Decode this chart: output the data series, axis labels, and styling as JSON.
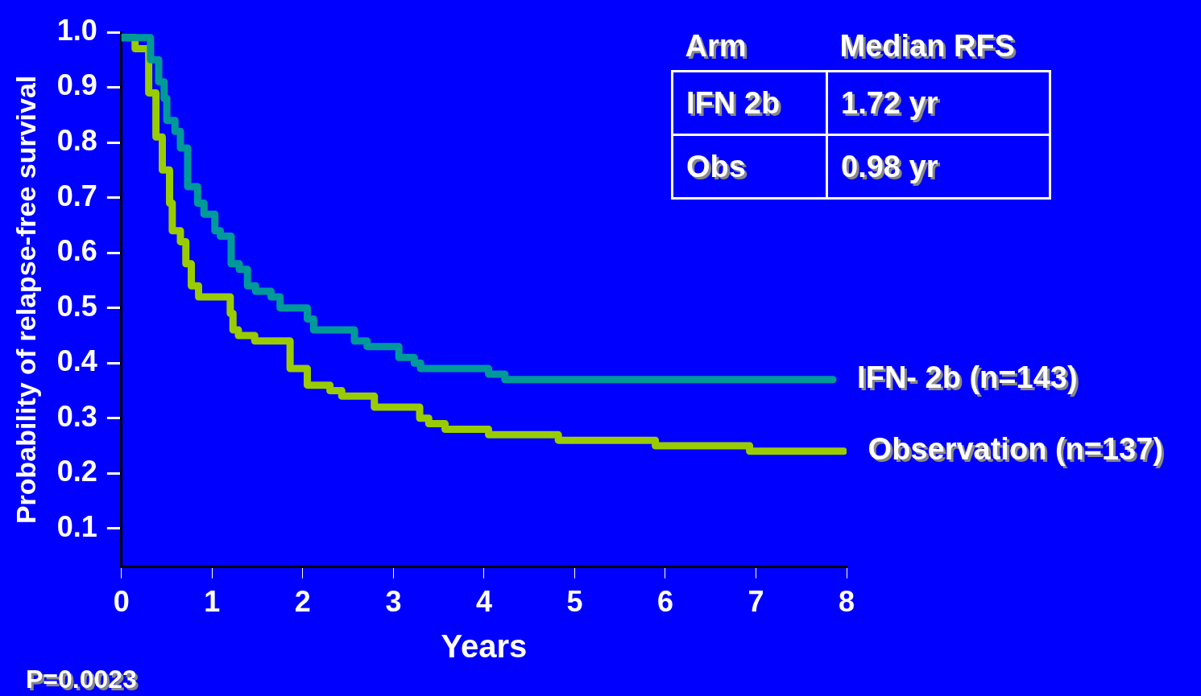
{
  "chart_data": {
    "type": "step",
    "xlabel": "Years",
    "ylabel": "Probability of relapse-free survival",
    "xlim": [
      0,
      8
    ],
    "xticks": [
      0,
      1,
      2,
      3,
      4,
      5,
      6,
      7,
      8
    ],
    "ylim": [
      0.03,
      1.0
    ],
    "yticks": [
      0.1,
      0.2,
      0.3,
      0.4,
      0.5,
      0.6,
      0.7,
      0.8,
      0.9,
      {
        "value": 1,
        "label": "1.0"
      }
    ],
    "grid": false,
    "legend": false,
    "series": [
      {
        "name": "IFN- 2b (n=143)",
        "color": "#009999",
        "x": [
          0,
          0.32,
          0.41,
          0.47,
          0.5,
          0.59,
          0.65,
          0.73,
          0.84,
          0.91,
          1.03,
          1.09,
          1.21,
          1.3,
          1.39,
          1.48,
          1.65,
          1.75,
          1.91,
          2.05,
          2.12,
          2.57,
          2.71,
          3.06,
          3.23,
          3.3,
          4.05,
          4.23,
          5.02,
          7.85
        ],
        "values": [
          0.99,
          0.95,
          0.91,
          0.88,
          0.84,
          0.82,
          0.79,
          0.72,
          0.69,
          0.67,
          0.64,
          0.63,
          0.58,
          0.57,
          0.54,
          0.53,
          0.52,
          0.5,
          0.5,
          0.48,
          0.46,
          0.44,
          0.43,
          0.41,
          0.4,
          0.39,
          0.38,
          0.37,
          0.37,
          0.37
        ]
      },
      {
        "name": "Observation (n=137)",
        "color": "#99cc00",
        "x": [
          0,
          0.15,
          0.3,
          0.38,
          0.45,
          0.53,
          0.56,
          0.65,
          0.71,
          0.77,
          0.85,
          1.2,
          1.23,
          1.29,
          1.47,
          1.86,
          2.05,
          2.3,
          2.43,
          2.79,
          3.29,
          3.39,
          3.57,
          4.05,
          4.82,
          5.89,
          6.93,
          7.97
        ],
        "values": [
          0.99,
          0.97,
          0.89,
          0.81,
          0.75,
          0.69,
          0.64,
          0.62,
          0.58,
          0.54,
          0.52,
          0.49,
          0.46,
          0.45,
          0.44,
          0.39,
          0.36,
          0.35,
          0.34,
          0.32,
          0.3,
          0.29,
          0.28,
          0.27,
          0.26,
          0.25,
          0.24,
          0.24
        ]
      }
    ],
    "annotations": [
      "Arm",
      "Median RFS",
      "IFN 2b",
      "1.72 yr",
      "Obs",
      "0.98 yr",
      "P=0.0023"
    ]
  }
}
